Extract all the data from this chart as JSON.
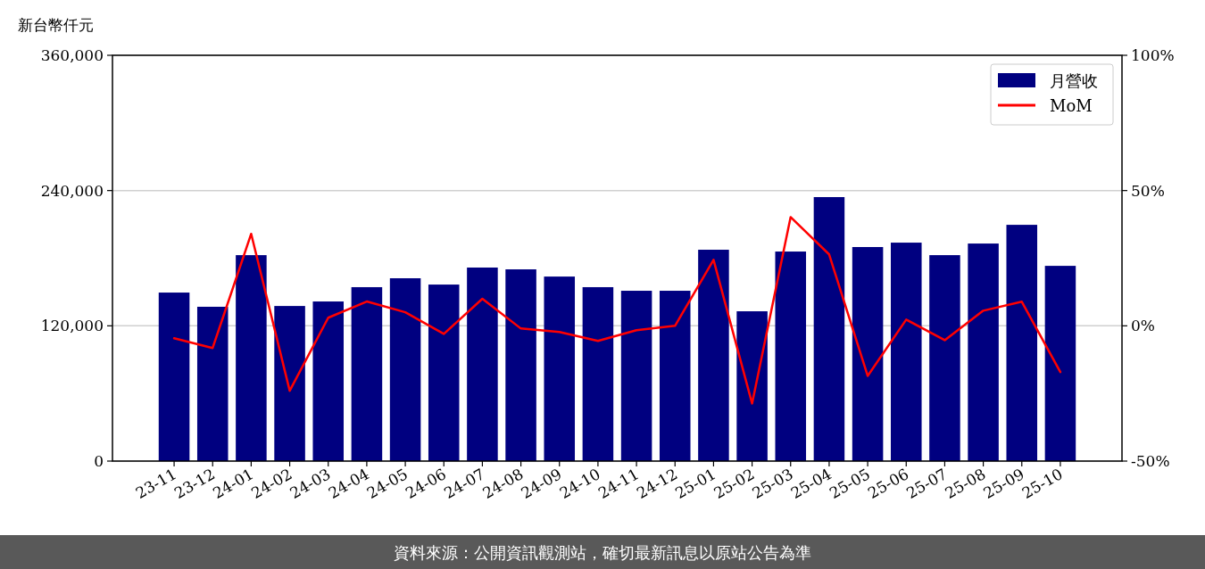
{
  "chart_data": {
    "type": "bar",
    "ylabel": "新台幣仟元",
    "categories": [
      "23-11",
      "23-12",
      "24-01",
      "24-02",
      "24-03",
      "24-04",
      "24-05",
      "24-06",
      "24-07",
      "24-08",
      "24-09",
      "24-10",
      "24-11",
      "24-12",
      "25-01",
      "25-02",
      "25-03",
      "25-04",
      "25-05",
      "25-06",
      "25-07",
      "25-08",
      "25-09",
      "25-10"
    ],
    "series": [
      {
        "name": "月營收",
        "color": "#000080",
        "values": [
          149500,
          136900,
          182700,
          137600,
          141600,
          154300,
          162200,
          156600,
          171700,
          170100,
          163700,
          154300,
          151100,
          151100,
          187500,
          132900,
          185900,
          234200,
          189900,
          193800,
          182700,
          193000,
          209600,
          173200
        ]
      },
      {
        "name": "MoM",
        "type": "line",
        "axis": "y2",
        "color": "#ff0000",
        "values": [
          -4.6,
          -8.2,
          34,
          -24,
          3,
          9,
          5,
          -3,
          10,
          -1,
          -2.3,
          -5.6,
          -1.6,
          0,
          24.4,
          -28.7,
          40.2,
          26.4,
          -18.5,
          2.3,
          -5.3,
          5.6,
          8.9,
          -17.1
        ]
      }
    ],
    "ylim": [
      0,
      360000
    ],
    "yticks": [
      0,
      {
        "value": 120000,
        "label": "120,000"
      },
      {
        "value": 240000,
        "label": "240,000"
      },
      {
        "value": 360000,
        "label": "360,000"
      }
    ],
    "y2lim": [
      -50,
      100
    ],
    "y2ticks": [
      {
        "value": -50,
        "label": "-50%"
      },
      {
        "value": 0,
        "label": "0%"
      },
      {
        "value": 50,
        "label": "50%"
      },
      {
        "value": 100,
        "label": "100%"
      }
    ],
    "grid": "y",
    "legend": "top right",
    "annotations": [
      "資料來源：公開資訊觀測站，確切最新訊息以原站公告為準"
    ]
  }
}
